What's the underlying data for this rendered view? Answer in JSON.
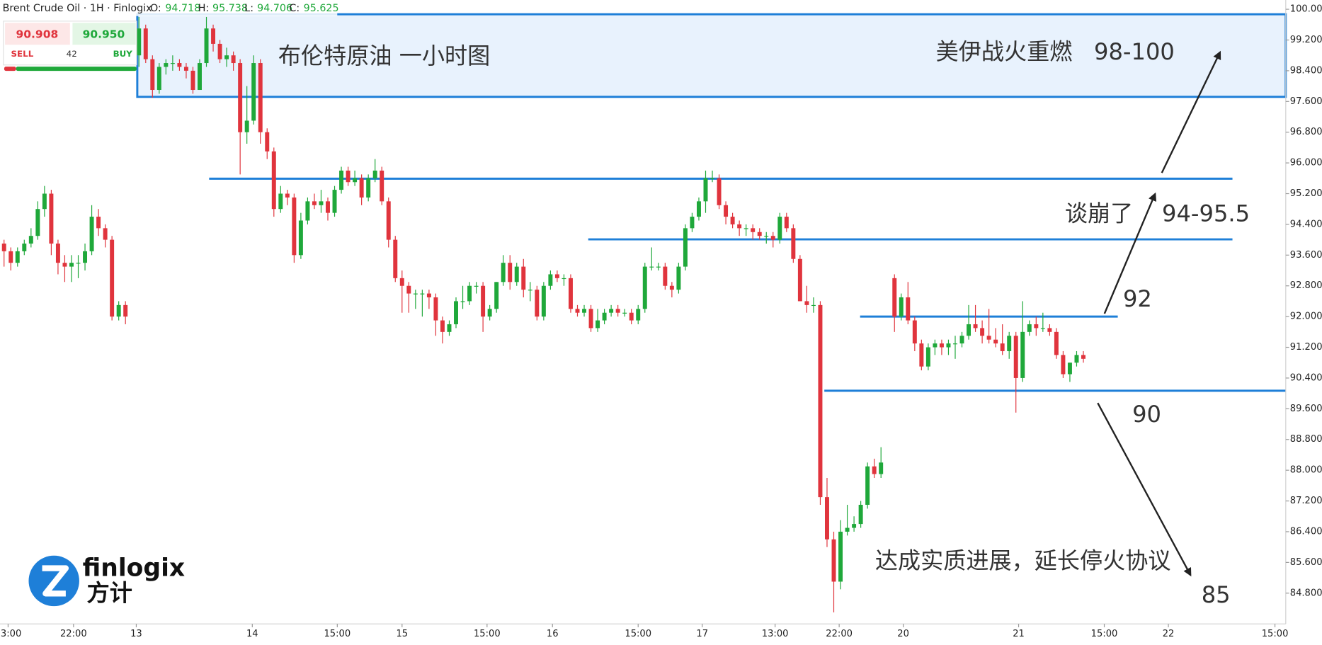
{
  "header": {
    "symbol": "Brent Crude Oil · 1H · Finlogix",
    "ohlc": [
      {
        "label": "O:",
        "value": "94.718"
      },
      {
        "label": "H:",
        "value": "95.738"
      },
      {
        "label": "L:",
        "value": "94.706"
      },
      {
        "label": "C:",
        "value": "95.625"
      }
    ]
  },
  "trade": {
    "sell_price": "90.908",
    "buy_price": "90.950",
    "sell": "SELL",
    "buy": "BUY",
    "spread": "42"
  },
  "logo": {
    "brand": "finlogix",
    "brand_cn": "方计"
  },
  "chart_data": {
    "type": "candlestick",
    "title": "布伦特原油 一小时图",
    "up_color": "#1fa83a",
    "down_color": "#e0343d",
    "level_color": "#1e7fd8",
    "zone_fill": "#e8f2fd",
    "xlim": [
      -0.6,
      190
    ],
    "ylim": [
      84.0,
      100.24
    ],
    "yticks": [
      {
        "value": 84.8,
        "label": "84.800"
      },
      {
        "value": 85.6,
        "label": "85.600"
      },
      {
        "value": 86.4,
        "label": "86.400"
      },
      {
        "value": 87.2,
        "label": "87.200"
      },
      {
        "value": 88.0,
        "label": "88.000"
      },
      {
        "value": 88.8,
        "label": "88.800"
      },
      {
        "value": 89.6,
        "label": "89.600"
      },
      {
        "value": 90.4,
        "label": "90.400"
      },
      {
        "value": 91.2,
        "label": "91.200"
      },
      {
        "value": 92.0,
        "label": "92.000"
      },
      {
        "value": 92.8,
        "label": "92.800"
      },
      {
        "value": 93.6,
        "label": "93.600"
      },
      {
        "value": 94.4,
        "label": "94.400"
      },
      {
        "value": 95.2,
        "label": "95.200"
      },
      {
        "value": 96.0,
        "label": "96.000"
      },
      {
        "value": 96.8,
        "label": "96.800"
      },
      {
        "value": 97.6,
        "label": "97.600"
      },
      {
        "value": 98.4,
        "label": "98.400"
      },
      {
        "value": 99.2,
        "label": "99.200"
      },
      {
        "value": 100.0,
        "label": "100.000"
      }
    ],
    "xticks": [
      {
        "value": 0.6,
        "label": "13:00"
      },
      {
        "value": 10.3,
        "label": "22:00"
      },
      {
        "value": 19.6,
        "label": "13"
      },
      {
        "value": 36.8,
        "label": "14"
      },
      {
        "value": 49.4,
        "label": "15:00"
      },
      {
        "value": 59,
        "label": "15"
      },
      {
        "value": 71.6,
        "label": "15:00"
      },
      {
        "value": 81.3,
        "label": "16"
      },
      {
        "value": 94,
        "label": "15:00"
      },
      {
        "value": 103.5,
        "label": "17"
      },
      {
        "value": 114.3,
        "label": "13:00"
      },
      {
        "value": 123.8,
        "label": "22:00"
      },
      {
        "value": 133.3,
        "label": "20"
      },
      {
        "value": 150.4,
        "label": "21"
      },
      {
        "value": 163.1,
        "label": "15:00"
      },
      {
        "value": 172.6,
        "label": "22"
      },
      {
        "value": 188.4,
        "label": "15:00"
      }
    ],
    "zone": {
      "low": 97.72,
      "high": 99.87,
      "from": 19.75,
      "to": 190
    },
    "levels": [
      {
        "value": 95.59,
        "from": 30.4,
        "to": 182.1
      },
      {
        "value": 94.01,
        "from": 86.6,
        "to": 182.1
      },
      {
        "value": 92.0,
        "from": 126.9,
        "to": 165.1
      },
      {
        "value": 90.07,
        "from": 121.6,
        "to": 190
      }
    ],
    "annotations": [
      "美伊战火重燃   98-100",
      "谈崩了    94-95.5",
      "92",
      "90",
      "85",
      "达成实质进展，延长停火协议"
    ],
    "candles": [
      [
        93.9,
        94.0,
        93.3,
        93.7
      ],
      [
        93.7,
        93.8,
        93.2,
        93.4
      ],
      [
        93.4,
        93.8,
        93.3,
        93.7
      ],
      [
        93.7,
        94.0,
        93.6,
        93.9
      ],
      [
        93.9,
        94.3,
        93.8,
        94.1
      ],
      [
        94.1,
        95.0,
        94.0,
        94.8
      ],
      [
        94.8,
        95.4,
        94.6,
        95.2
      ],
      [
        95.2,
        95.3,
        93.6,
        93.9
      ],
      [
        93.9,
        94.0,
        93.1,
        93.4
      ],
      [
        93.4,
        93.6,
        92.9,
        93.3
      ],
      [
        93.3,
        93.6,
        92.9,
        93.4
      ],
      [
        93.4,
        93.6,
        93.0,
        93.4
      ],
      [
        93.4,
        93.9,
        93.2,
        93.7
      ],
      [
        93.7,
        94.9,
        93.6,
        94.6
      ],
      [
        94.6,
        94.8,
        94.1,
        94.3
      ],
      [
        94.3,
        94.4,
        93.8,
        94.0
      ],
      [
        94.0,
        94.1,
        91.9,
        92.0
      ],
      [
        92.0,
        92.4,
        91.9,
        92.3
      ],
      [
        92.3,
        92.4,
        91.8,
        92.0
      ],
      null,
      [
        98.8,
        99.8,
        98.5,
        99.5
      ],
      [
        99.5,
        99.6,
        98.6,
        98.7
      ],
      [
        98.7,
        98.8,
        97.7,
        97.9
      ],
      [
        97.9,
        98.6,
        97.8,
        98.5
      ],
      [
        98.5,
        98.7,
        98.3,
        98.6
      ],
      [
        98.6,
        98.8,
        98.4,
        98.6
      ],
      [
        98.6,
        98.7,
        98.4,
        98.5
      ],
      [
        98.5,
        98.6,
        98.2,
        98.4
      ],
      [
        98.4,
        98.5,
        97.8,
        97.9
      ],
      [
        97.9,
        98.7,
        97.9,
        98.6
      ],
      [
        98.6,
        99.8,
        98.5,
        99.5
      ],
      [
        99.5,
        99.6,
        98.9,
        99.1
      ],
      [
        99.1,
        99.2,
        98.6,
        98.7
      ],
      [
        98.7,
        99.0,
        98.5,
        98.8
      ],
      [
        98.8,
        98.9,
        98.4,
        98.6
      ],
      [
        98.6,
        98.7,
        95.7,
        96.8
      ],
      [
        96.8,
        98.0,
        96.5,
        97.1
      ],
      [
        97.1,
        98.8,
        97.0,
        98.6
      ],
      [
        98.6,
        98.7,
        96.5,
        96.8
      ],
      [
        96.8,
        96.9,
        96.1,
        96.3
      ],
      [
        96.3,
        96.4,
        94.6,
        94.8
      ],
      [
        94.8,
        95.4,
        94.7,
        95.2
      ],
      [
        95.2,
        95.3,
        94.9,
        95.1
      ],
      [
        95.1,
        95.2,
        93.4,
        93.6
      ],
      [
        93.6,
        94.7,
        93.5,
        94.5
      ],
      [
        94.5,
        95.1,
        94.4,
        95.0
      ],
      [
        95.0,
        95.2,
        94.8,
        94.9
      ],
      [
        94.9,
        95.3,
        94.7,
        95.0
      ],
      [
        95.0,
        95.1,
        94.5,
        94.7
      ],
      [
        94.7,
        95.4,
        94.6,
        95.3
      ],
      [
        95.3,
        95.9,
        95.2,
        95.8
      ],
      [
        95.8,
        95.9,
        95.4,
        95.5
      ],
      [
        95.5,
        95.8,
        95.4,
        95.6
      ],
      [
        95.6,
        95.7,
        94.9,
        95.1
      ],
      [
        95.1,
        95.7,
        95.0,
        95.6
      ],
      [
        95.6,
        96.1,
        95.5,
        95.8
      ],
      [
        95.8,
        95.9,
        94.9,
        95.0
      ],
      [
        95.0,
        95.1,
        93.8,
        94.0
      ],
      [
        94.0,
        94.1,
        92.9,
        93.0
      ],
      [
        93.0,
        93.2,
        92.1,
        92.8
      ],
      [
        92.8,
        92.9,
        92.1,
        92.6
      ],
      [
        92.6,
        92.7,
        92.2,
        92.6
      ],
      [
        92.6,
        92.7,
        92.0,
        92.6
      ],
      [
        92.6,
        92.7,
        92.2,
        92.5
      ],
      [
        92.5,
        92.6,
        91.5,
        91.9
      ],
      [
        91.9,
        92.0,
        91.3,
        91.6
      ],
      [
        91.6,
        91.9,
        91.5,
        91.8
      ],
      [
        91.8,
        92.5,
        91.7,
        92.4
      ],
      [
        92.4,
        92.8,
        92.2,
        92.4
      ],
      [
        92.4,
        92.9,
        92.3,
        92.8
      ],
      [
        92.8,
        92.9,
        92.6,
        92.8
      ],
      [
        92.8,
        92.9,
        91.6,
        92.0
      ],
      [
        92.0,
        92.3,
        91.9,
        92.2
      ],
      [
        92.2,
        92.9,
        92.1,
        92.9
      ],
      [
        92.9,
        93.6,
        92.8,
        93.4
      ],
      [
        93.4,
        93.6,
        92.7,
        92.9
      ],
      [
        92.9,
        93.4,
        92.8,
        93.3
      ],
      [
        93.3,
        93.5,
        92.5,
        92.7
      ],
      [
        92.7,
        92.9,
        92.4,
        92.7
      ],
      [
        92.7,
        92.8,
        91.9,
        92.0
      ],
      [
        92.0,
        92.9,
        91.9,
        92.8
      ],
      [
        92.8,
        93.2,
        92.7,
        93.1
      ],
      [
        93.1,
        93.2,
        92.9,
        93.0
      ],
      [
        93.0,
        93.1,
        92.8,
        93.0
      ],
      [
        93.0,
        93.1,
        92.1,
        92.2
      ],
      [
        92.2,
        92.3,
        92.0,
        92.1
      ],
      [
        92.1,
        92.3,
        92.0,
        92.2
      ],
      [
        92.2,
        92.3,
        91.6,
        91.7
      ],
      [
        91.7,
        92.2,
        91.6,
        91.9
      ],
      [
        91.9,
        92.2,
        91.8,
        92.1
      ],
      [
        92.1,
        92.3,
        92.0,
        92.2
      ],
      [
        92.2,
        92.3,
        92.0,
        92.1
      ],
      [
        92.1,
        92.2,
        92.0,
        92.1
      ],
      [
        92.1,
        92.2,
        91.8,
        91.9
      ],
      [
        91.9,
        92.3,
        91.8,
        92.2
      ],
      [
        92.2,
        93.4,
        92.1,
        93.3
      ],
      [
        93.3,
        93.8,
        93.2,
        93.3
      ],
      [
        93.3,
        93.4,
        93.2,
        93.3
      ],
      [
        93.3,
        93.4,
        92.7,
        92.8
      ],
      [
        92.8,
        92.9,
        92.5,
        92.7
      ],
      [
        92.7,
        93.4,
        92.6,
        93.3
      ],
      [
        93.3,
        94.4,
        93.2,
        94.3
      ],
      [
        94.3,
        94.7,
        94.2,
        94.6
      ],
      [
        94.6,
        95.1,
        94.5,
        95.0
      ],
      [
        95.0,
        95.8,
        94.7,
        95.6
      ],
      [
        95.6,
        95.8,
        95.5,
        95.6
      ],
      [
        95.6,
        95.7,
        94.8,
        94.9
      ],
      [
        94.9,
        95.0,
        94.4,
        94.6
      ],
      [
        94.6,
        94.7,
        94.3,
        94.4
      ],
      [
        94.4,
        94.5,
        94.1,
        94.3
      ],
      [
        94.3,
        94.4,
        94.1,
        94.3
      ],
      [
        94.3,
        94.4,
        94.0,
        94.2
      ],
      [
        94.2,
        94.3,
        94.0,
        94.1
      ],
      [
        94.1,
        94.2,
        93.9,
        94.1
      ],
      [
        94.1,
        94.2,
        93.8,
        94.0
      ],
      [
        94.0,
        94.7,
        93.9,
        94.6
      ],
      [
        94.6,
        94.7,
        94.2,
        94.3
      ],
      [
        94.3,
        94.4,
        93.4,
        93.5
      ],
      [
        93.5,
        93.6,
        92.4,
        92.4
      ],
      [
        92.4,
        92.8,
        92.1,
        92.3
      ],
      [
        92.3,
        92.5,
        92.1,
        92.3
      ],
      [
        92.3,
        92.4,
        87.1,
        87.3
      ],
      [
        87.3,
        87.8,
        86.0,
        86.2
      ],
      [
        86.2,
        86.4,
        84.3,
        85.1
      ],
      [
        85.1,
        86.7,
        84.9,
        86.4
      ],
      [
        86.4,
        87.1,
        86.3,
        86.5
      ],
      [
        86.5,
        86.8,
        86.4,
        86.6
      ],
      [
        86.6,
        87.2,
        86.5,
        87.1
      ],
      [
        87.1,
        88.2,
        87.0,
        88.1
      ],
      [
        88.1,
        88.3,
        87.8,
        87.9
      ],
      [
        87.9,
        88.6,
        87.8,
        88.2
      ],
      null,
      [
        93.0,
        93.1,
        91.6,
        92.0
      ],
      [
        92.0,
        92.6,
        91.9,
        92.5
      ],
      [
        92.5,
        92.9,
        91.8,
        91.9
      ],
      [
        91.9,
        92.0,
        91.1,
        91.3
      ],
      [
        91.3,
        91.4,
        90.6,
        90.7
      ],
      [
        90.7,
        91.3,
        90.6,
        91.2
      ],
      [
        91.2,
        91.4,
        91.0,
        91.3
      ],
      [
        91.3,
        91.4,
        91.0,
        91.2
      ],
      [
        91.2,
        91.4,
        91.0,
        91.3
      ],
      [
        91.3,
        91.5,
        90.9,
        91.3
      ],
      [
        91.3,
        91.6,
        91.2,
        91.5
      ],
      [
        91.5,
        92.3,
        91.4,
        91.8
      ],
      [
        91.8,
        92.3,
        91.6,
        91.7
      ],
      [
        91.7,
        91.9,
        91.3,
        91.5
      ],
      [
        91.5,
        92.2,
        91.3,
        91.4
      ],
      [
        91.4,
        91.7,
        91.2,
        91.3
      ],
      [
        91.3,
        91.8,
        91.0,
        91.1
      ],
      [
        91.1,
        91.6,
        90.9,
        91.5
      ],
      [
        91.5,
        91.6,
        89.5,
        90.4
      ],
      [
        90.4,
        92.4,
        90.3,
        91.6
      ],
      [
        91.6,
        91.9,
        91.5,
        91.8
      ],
      [
        91.8,
        92.0,
        91.5,
        91.7
      ],
      [
        91.7,
        92.1,
        91.6,
        91.7
      ],
      [
        91.7,
        91.8,
        91.5,
        91.6
      ],
      [
        91.6,
        91.7,
        90.9,
        91.0
      ],
      [
        91.0,
        91.1,
        90.4,
        90.5
      ],
      [
        90.5,
        90.8,
        90.3,
        90.8
      ],
      [
        90.8,
        91.1,
        90.7,
        91.0
      ],
      [
        91.0,
        91.1,
        90.8,
        90.9
      ]
    ]
  }
}
